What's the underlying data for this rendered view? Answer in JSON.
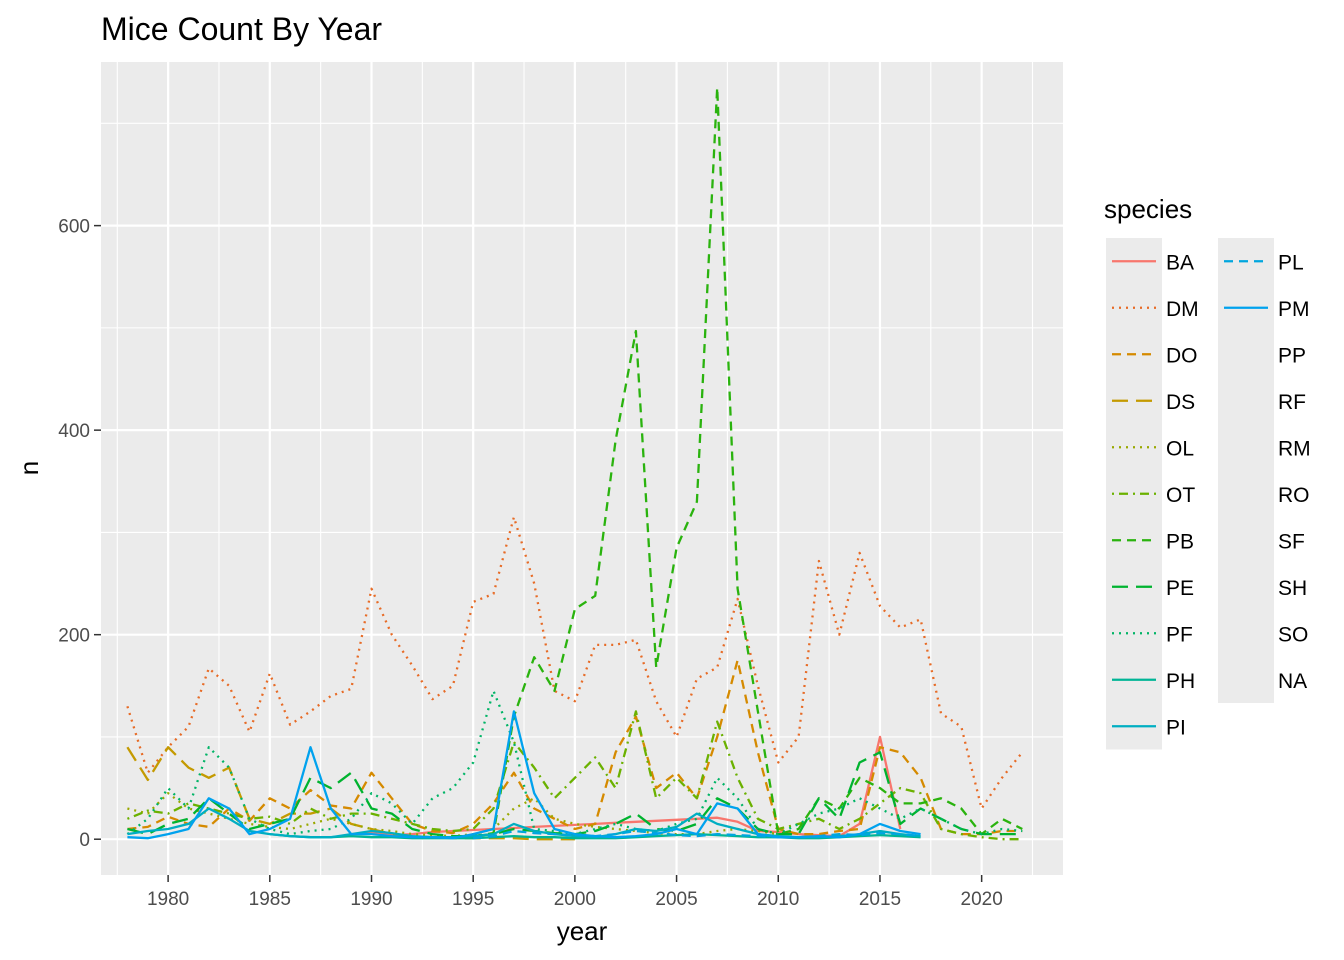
{
  "chart_data": {
    "type": "line",
    "title": "Mice Count By Year",
    "xlabel": "year",
    "ylabel": "n",
    "xlim": [
      1976.7,
      2024.0
    ],
    "ylim": [
      -35,
      760
    ],
    "xticks": [
      1980,
      1985,
      1990,
      1995,
      2000,
      2005,
      2010,
      2015,
      2020
    ],
    "yticks": [
      0,
      200,
      400,
      600
    ],
    "grid": true,
    "legend": {
      "title": "species",
      "placement": "right"
    },
    "series": [
      {
        "name": "BA",
        "color": "#F8766D",
        "dash": "solid",
        "x": [
          1989,
          1990,
          1991,
          1992,
          1993,
          1994,
          1995,
          1996,
          1997,
          1998,
          1999,
          2000,
          2001,
          2002,
          2003,
          2004,
          2005,
          2006,
          2007,
          2008,
          2009,
          2010,
          2011,
          2012,
          2013,
          2014,
          2015,
          2016
        ],
        "y": [
          5,
          6,
          4,
          5,
          7,
          8,
          9,
          10,
          11,
          12,
          13,
          14,
          15,
          16,
          17,
          18,
          19,
          20,
          21,
          17,
          8,
          7,
          5,
          4,
          3,
          15,
          100,
          10
        ]
      },
      {
        "name": "DM",
        "color": "#E76B26",
        "dash": "dot",
        "x": [
          1978,
          1979,
          1980,
          1981,
          1982,
          1983,
          1984,
          1985,
          1986,
          1987,
          1988,
          1989,
          1990,
          1991,
          1992,
          1993,
          1994,
          1995,
          1996,
          1997,
          1998,
          1999,
          2000,
          2001,
          2002,
          2003,
          2004,
          2005,
          2006,
          2007,
          2008,
          2009,
          2010,
          2011,
          2012,
          2013,
          2014,
          2015,
          2016,
          2017,
          2018,
          2019,
          2020,
          2021,
          2022
        ],
        "y": [
          130,
          65,
          90,
          110,
          167,
          150,
          105,
          162,
          112,
          125,
          140,
          147,
          245,
          200,
          170,
          137,
          150,
          232,
          240,
          315,
          250,
          145,
          135,
          190,
          190,
          195,
          135,
          100,
          157,
          168,
          235,
          150,
          75,
          100,
          272,
          200,
          280,
          228,
          207,
          215,
          123,
          110,
          30,
          60,
          85
        ]
      },
      {
        "name": "DO",
        "color": "#D58A00",
        "dash": "dash",
        "x": [
          1978,
          1979,
          1980,
          1981,
          1982,
          1983,
          1984,
          1985,
          1986,
          1987,
          1988,
          1989,
          1990,
          1991,
          1992,
          1993,
          1994,
          1995,
          1996,
          1997,
          1998,
          1999,
          2000,
          2001,
          2002,
          2003,
          2004,
          2005,
          2006,
          2007,
          2008,
          2009,
          2010,
          2011,
          2012,
          2013,
          2014,
          2015,
          2016,
          2017,
          2018,
          2019,
          2020,
          2021,
          2022
        ],
        "y": [
          10,
          12,
          22,
          15,
          12,
          30,
          18,
          40,
          30,
          48,
          33,
          30,
          65,
          40,
          15,
          8,
          6,
          15,
          35,
          65,
          30,
          20,
          10,
          15,
          85,
          120,
          50,
          65,
          40,
          100,
          175,
          85,
          10,
          5,
          5,
          8,
          10,
          90,
          85,
          60,
          10,
          5,
          5,
          8,
          8
        ]
      },
      {
        "name": "DS",
        "color": "#C49A00",
        "dash": "longdash",
        "x": [
          1978,
          1979,
          1980,
          1981,
          1982,
          1983,
          1984,
          1985,
          1986,
          1987,
          1988,
          1989,
          1990,
          1991,
          1992,
          1993,
          1994,
          1995,
          1996,
          1997,
          1998,
          1999,
          2000
        ],
        "y": [
          90,
          58,
          90,
          70,
          60,
          70,
          20,
          15,
          25,
          25,
          30,
          15,
          10,
          5,
          3,
          2,
          1,
          1,
          1,
          1,
          0,
          0,
          0
        ]
      },
      {
        "name": "OL",
        "color": "#99A800",
        "dash": "dot",
        "x": [
          1978,
          1979,
          1980,
          1981,
          1982,
          1983,
          1984,
          1985,
          1986,
          1987,
          1988,
          1989,
          1990,
          1991,
          1992,
          1993,
          1994,
          1995,
          1996,
          1997,
          1998,
          1999,
          2000,
          2001,
          2002,
          2003,
          2004,
          2005,
          2006,
          2007,
          2008,
          2009,
          2010
        ],
        "y": [
          30,
          25,
          45,
          30,
          25,
          20,
          15,
          12,
          10,
          15,
          20,
          15,
          10,
          8,
          5,
          4,
          3,
          5,
          10,
          30,
          40,
          20,
          15,
          12,
          10,
          8,
          6,
          5,
          5,
          8,
          10,
          8,
          5
        ]
      },
      {
        "name": "OT",
        "color": "#6BB100",
        "dash": "dotdash",
        "x": [
          1978,
          1979,
          1980,
          1981,
          1982,
          1983,
          1984,
          1985,
          1986,
          1987,
          1988,
          1989,
          1990,
          1991,
          1992,
          1993,
          1994,
          1995,
          1996,
          1997,
          1998,
          1999,
          2000,
          2001,
          2002,
          2003,
          2004,
          2005,
          2006,
          2007,
          2008,
          2009,
          2010,
          2011,
          2012,
          2013,
          2014,
          2015,
          2016,
          2017,
          2018,
          2019,
          2020,
          2021,
          2022
        ],
        "y": [
          20,
          28,
          25,
          35,
          30,
          25,
          20,
          22,
          15,
          30,
          20,
          25,
          25,
          20,
          15,
          10,
          8,
          10,
          30,
          95,
          70,
          40,
          60,
          80,
          50,
          125,
          40,
          60,
          40,
          115,
          60,
          20,
          10,
          15,
          20,
          10,
          20,
          35,
          50,
          45,
          10,
          5,
          2,
          0,
          0
        ]
      },
      {
        "name": "PB",
        "color": "#2AB30E",
        "dash": "dash",
        "x": [
          1995,
          1996,
          1997,
          1998,
          1999,
          2000,
          2001,
          2002,
          2003,
          2004,
          2005,
          2006,
          2007,
          2008,
          2009,
          2010,
          2011,
          2012,
          2013,
          2014,
          2015,
          2016,
          2017,
          2018,
          2019,
          2020,
          2021,
          2022
        ],
        "y": [
          3,
          6,
          120,
          178,
          145,
          225,
          238,
          390,
          497,
          168,
          285,
          330,
          735,
          245,
          125,
          5,
          10,
          40,
          30,
          60,
          50,
          35,
          35,
          40,
          30,
          5,
          20,
          10
        ]
      },
      {
        "name": "PE",
        "color": "#00B32F",
        "dash": "longdash",
        "x": [
          1978,
          1979,
          1980,
          1981,
          1982,
          1983,
          1984,
          1985,
          1986,
          1987,
          1988,
          1989,
          1990,
          1991,
          1992,
          1993,
          1994,
          1995,
          1996,
          1997,
          1998,
          1999,
          2000,
          2001,
          2002,
          2003,
          2004,
          2005,
          2006,
          2007,
          2008,
          2009,
          2010,
          2011,
          2012,
          2013,
          2014,
          2015,
          2016,
          2017,
          2018,
          2019,
          2020,
          2021,
          2022
        ],
        "y": [
          10,
          5,
          15,
          20,
          40,
          25,
          10,
          15,
          20,
          60,
          50,
          65,
          30,
          25,
          10,
          5,
          3,
          3,
          5,
          10,
          8,
          6,
          5,
          8,
          15,
          25,
          10,
          8,
          15,
          40,
          30,
          10,
          5,
          5,
          40,
          20,
          75,
          85,
          15,
          30,
          20,
          10,
          5,
          5,
          5
        ]
      },
      {
        "name": "PF",
        "color": "#00B466",
        "dash": "dot",
        "x": [
          1978,
          1979,
          1980,
          1981,
          1982,
          1983,
          1984,
          1985,
          1986,
          1987,
          1988,
          1989,
          1990,
          1991,
          1992,
          1993,
          1994,
          1995,
          1996,
          1997,
          1998,
          1999,
          2000,
          2001,
          2002,
          2003,
          2004,
          2005,
          2006,
          2007,
          2008,
          2009,
          2010,
          2011,
          2012,
          2013,
          2014,
          2015,
          2016,
          2017,
          2018,
          2019,
          2020,
          2021,
          2022
        ],
        "y": [
          5,
          20,
          50,
          30,
          90,
          70,
          20,
          10,
          5,
          8,
          10,
          20,
          45,
          35,
          15,
          40,
          50,
          75,
          145,
          95,
          10,
          8,
          5,
          10,
          15,
          10,
          8,
          15,
          20,
          60,
          40,
          10,
          5,
          15,
          25,
          30,
          40,
          30,
          20,
          30,
          20,
          10,
          5,
          10,
          8
        ]
      },
      {
        "name": "PH",
        "color": "#00B596",
        "dash": "solid",
        "x": [
          1985,
          1986,
          1987,
          1988,
          1989,
          1990,
          1991,
          1992,
          1993,
          1994,
          1995,
          1996,
          1997,
          1998,
          1999,
          2000,
          2001,
          2002,
          2003,
          2004,
          2005,
          2006,
          2007,
          2008,
          2009,
          2010,
          2011,
          2012,
          2013,
          2014,
          2015,
          2016,
          2017
        ],
        "y": [
          5,
          3,
          2,
          2,
          3,
          2,
          2,
          1,
          1,
          1,
          1,
          2,
          3,
          2,
          2,
          1,
          1,
          1,
          2,
          3,
          4,
          5,
          4,
          3,
          2,
          2,
          1,
          1,
          2,
          3,
          4,
          3,
          2
        ]
      },
      {
        "name": "PI",
        "color": "#00AEC2",
        "dash": "solid",
        "x": [
          1978,
          1979,
          1980,
          1981,
          1982,
          1983,
          1984,
          1985,
          1986,
          1987,
          1988,
          1989,
          1990,
          1991,
          1992,
          1993,
          1994,
          1995,
          1996,
          1997,
          1998,
          1999,
          2000,
          2001,
          2002,
          2003,
          2004,
          2005,
          2006,
          2007,
          2008,
          2009,
          2010,
          2011,
          2012,
          2013,
          2014,
          2015,
          2016,
          2017
        ],
        "y": [
          5,
          8,
          10,
          15,
          30,
          20,
          8,
          5,
          3,
          2,
          2,
          5,
          8,
          6,
          3,
          2,
          2,
          3,
          5,
          15,
          8,
          5,
          3,
          2,
          5,
          10,
          8,
          12,
          25,
          15,
          10,
          5,
          3,
          2,
          2,
          3,
          5,
          8,
          5,
          3
        ]
      },
      {
        "name": "PL",
        "color": "#00A6DE",
        "dash": "dash",
        "x": [
          1995,
          1996,
          1997,
          1998,
          1999,
          2000,
          2001,
          2002,
          2003,
          2004,
          2005,
          2006,
          2007,
          2008,
          2009,
          2010,
          2011,
          2012,
          2013,
          2014,
          2015,
          2016,
          2017
        ],
        "y": [
          1,
          3,
          8,
          6,
          5,
          4,
          3,
          5,
          8,
          6,
          4,
          3,
          5,
          4,
          3,
          2,
          2,
          3,
          5,
          4,
          6,
          5,
          3
        ]
      },
      {
        "name": "PM",
        "color": "#00A2EE",
        "dash": "solid",
        "x": [
          1978,
          1979,
          1980,
          1981,
          1982,
          1983,
          1984,
          1985,
          1986,
          1987,
          1988,
          1989,
          1990,
          1991,
          1992,
          1993,
          1994,
          1995,
          1996,
          1997,
          1998,
          1999,
          2000,
          2001,
          2002,
          2003,
          2004,
          2005,
          2006,
          2007,
          2008,
          2009,
          2010,
          2011,
          2012,
          2013,
          2014,
          2015,
          2016,
          2017
        ],
        "y": [
          2,
          1,
          5,
          10,
          40,
          30,
          5,
          10,
          20,
          90,
          30,
          5,
          5,
          3,
          2,
          2,
          1,
          5,
          10,
          125,
          45,
          10,
          5,
          3,
          2,
          3,
          5,
          10,
          5,
          35,
          30,
          5,
          2,
          2,
          3,
          2,
          5,
          15,
          8,
          5
        ]
      }
    ],
    "legend_extra": [
      "PP",
      "RF",
      "RM",
      "RO",
      "SF",
      "SH",
      "SO",
      "NA"
    ]
  }
}
